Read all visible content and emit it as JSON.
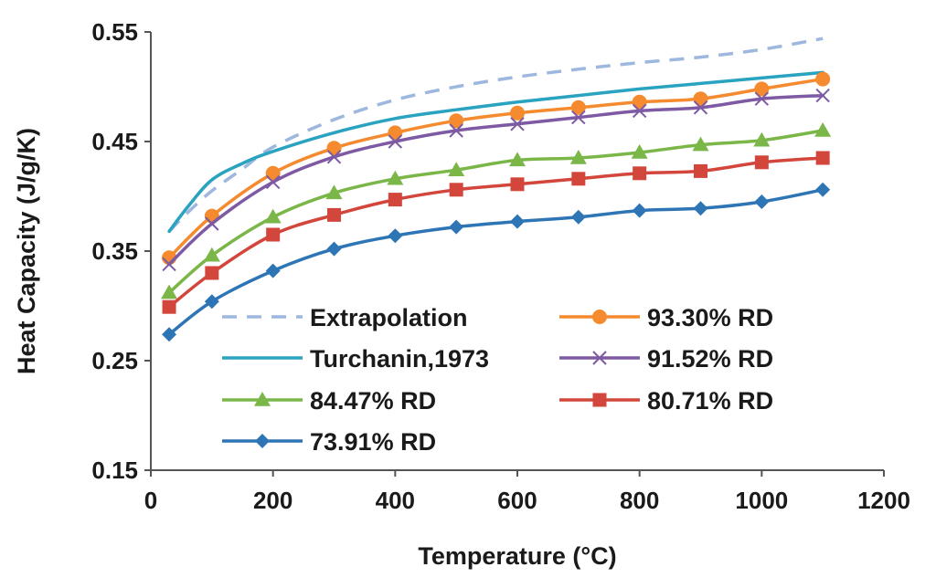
{
  "chart_data": {
    "type": "line",
    "title": "",
    "xlabel": "Temperature (°C)",
    "ylabel": "Heat Capacity (J/g/K)",
    "xlim": [
      0,
      1200
    ],
    "ylim": [
      0.15,
      0.55
    ],
    "xticks": [
      0,
      200,
      400,
      600,
      800,
      1000,
      1200
    ],
    "yticks": [
      0.15,
      0.25,
      0.35,
      0.45,
      0.55
    ],
    "xtick_labels": [
      "0",
      "200",
      "400",
      "600",
      "800",
      "1000",
      "1200"
    ],
    "ytick_labels": [
      "0.15",
      "0.25",
      "0.35",
      "0.45",
      "0.55"
    ],
    "grid": false,
    "legend_position": "bottom-center",
    "series": [
      {
        "name": "Extrapolation",
        "color": "#9db7de",
        "style": "dashed",
        "marker": "none",
        "x": [
          30,
          60,
          100,
          150,
          200,
          300,
          400,
          500,
          600,
          700,
          800,
          900,
          1000,
          1100
        ],
        "y": [
          0.368,
          0.385,
          0.405,
          0.425,
          0.445,
          0.47,
          0.488,
          0.5,
          0.509,
          0.516,
          0.522,
          0.527,
          0.534,
          0.544
        ]
      },
      {
        "name": "Turchanin,1973",
        "color": "#2aa3c0",
        "style": "solid",
        "marker": "none",
        "x": [
          30,
          60,
          100,
          150,
          200,
          300,
          400,
          500,
          600,
          700,
          800,
          900,
          1000,
          1100
        ],
        "y": [
          0.368,
          0.39,
          0.415,
          0.43,
          0.441,
          0.458,
          0.471,
          0.479,
          0.486,
          0.492,
          0.498,
          0.503,
          0.508,
          0.513
        ]
      },
      {
        "name": "93.30% RD",
        "color": "#f58a2e",
        "style": "solid",
        "marker": "circle",
        "x": [
          30,
          100,
          200,
          300,
          400,
          500,
          600,
          700,
          800,
          900,
          1000,
          1100
        ],
        "y": [
          0.344,
          0.382,
          0.421,
          0.444,
          0.458,
          0.469,
          0.476,
          0.481,
          0.486,
          0.489,
          0.498,
          0.507
        ]
      },
      {
        "name": "91.52% RD",
        "color": "#7d5aa3",
        "style": "solid",
        "marker": "x",
        "x": [
          30,
          100,
          200,
          300,
          400,
          500,
          600,
          700,
          800,
          900,
          1000,
          1100
        ],
        "y": [
          0.338,
          0.375,
          0.413,
          0.436,
          0.45,
          0.46,
          0.466,
          0.472,
          0.478,
          0.481,
          0.489,
          0.492
        ]
      },
      {
        "name": "84.47% RD",
        "color": "#7ab648",
        "style": "solid",
        "marker": "triangle",
        "x": [
          30,
          100,
          200,
          300,
          400,
          500,
          600,
          700,
          800,
          900,
          1000,
          1100
        ],
        "y": [
          0.312,
          0.346,
          0.381,
          0.403,
          0.416,
          0.424,
          0.433,
          0.435,
          0.44,
          0.447,
          0.451,
          0.46
        ]
      },
      {
        "name": "80.71% RD",
        "color": "#d2463c",
        "style": "solid",
        "marker": "square",
        "x": [
          30,
          100,
          200,
          300,
          400,
          500,
          600,
          700,
          800,
          900,
          1000,
          1100
        ],
        "y": [
          0.299,
          0.33,
          0.365,
          0.383,
          0.397,
          0.406,
          0.411,
          0.416,
          0.421,
          0.423,
          0.431,
          0.435
        ]
      },
      {
        "name": "73.91% RD",
        "color": "#2e75b6",
        "style": "solid",
        "marker": "diamond",
        "x": [
          30,
          100,
          200,
          300,
          400,
          500,
          600,
          700,
          800,
          900,
          1000,
          1100
        ],
        "y": [
          0.274,
          0.304,
          0.332,
          0.352,
          0.364,
          0.372,
          0.377,
          0.381,
          0.387,
          0.389,
          0.395,
          0.406
        ]
      }
    ]
  }
}
